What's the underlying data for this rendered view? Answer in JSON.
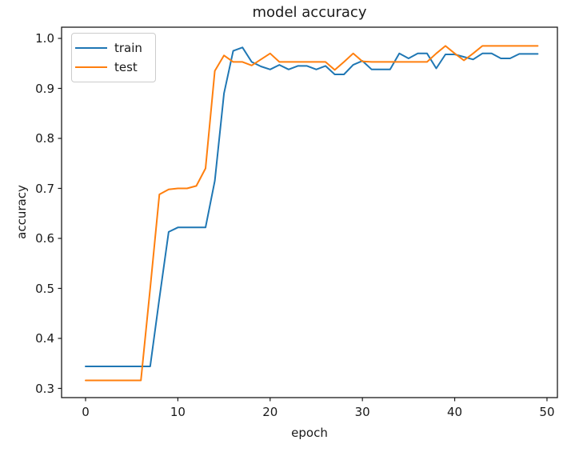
{
  "chart_data": {
    "type": "line",
    "title": "model accuracy",
    "xlabel": "epoch",
    "ylabel": "accuracy",
    "x": [
      0,
      1,
      2,
      3,
      4,
      5,
      6,
      7,
      8,
      9,
      10,
      11,
      12,
      13,
      14,
      15,
      16,
      17,
      18,
      19,
      20,
      21,
      22,
      23,
      24,
      25,
      26,
      27,
      28,
      29,
      30,
      31,
      32,
      33,
      34,
      35,
      36,
      37,
      38,
      39,
      40,
      41,
      42,
      43,
      44,
      45,
      46,
      47,
      48,
      49
    ],
    "series": [
      {
        "name": "train",
        "color": "#1f77b4",
        "values": [
          0.344,
          0.344,
          0.344,
          0.344,
          0.344,
          0.344,
          0.344,
          0.344,
          0.48,
          0.613,
          0.622,
          0.622,
          0.622,
          0.622,
          0.715,
          0.89,
          0.975,
          0.982,
          0.953,
          0.944,
          0.938,
          0.947,
          0.938,
          0.945,
          0.945,
          0.938,
          0.945,
          0.928,
          0.928,
          0.947,
          0.955,
          0.938,
          0.938,
          0.938,
          0.97,
          0.96,
          0.97,
          0.97,
          0.94,
          0.968,
          0.968,
          0.963,
          0.958,
          0.97,
          0.97,
          0.96,
          0.96,
          0.969,
          0.969,
          0.969
        ]
      },
      {
        "name": "test",
        "color": "#ff7f0e",
        "values": [
          0.316,
          0.316,
          0.316,
          0.316,
          0.316,
          0.316,
          0.316,
          0.5,
          0.688,
          0.698,
          0.7,
          0.7,
          0.705,
          0.74,
          0.935,
          0.966,
          0.953,
          0.953,
          0.946,
          0.958,
          0.97,
          0.953,
          0.953,
          0.953,
          0.953,
          0.953,
          0.953,
          0.937,
          0.953,
          0.97,
          0.954,
          0.953,
          0.953,
          0.953,
          0.953,
          0.953,
          0.953,
          0.953,
          0.97,
          0.985,
          0.97,
          0.956,
          0.97,
          0.985,
          0.985,
          0.985,
          0.985,
          0.985,
          0.985,
          0.985
        ]
      }
    ],
    "xticks": [
      0,
      10,
      20,
      30,
      40,
      50
    ],
    "xtick_labels": [
      "0",
      "10",
      "20",
      "30",
      "40",
      "50"
    ],
    "yticks": [
      0.3,
      0.4,
      0.5,
      0.6,
      0.7,
      0.8,
      0.9,
      1.0
    ],
    "ytick_labels": [
      "0.3",
      "0.4",
      "0.5",
      "0.6",
      "0.7",
      "0.8",
      "0.9",
      "1.0"
    ],
    "xlim": [
      -2.6,
      51.13
    ],
    "ylim": [
      0.2816,
      1.0224
    ],
    "legend_position": "upper left",
    "grid": false,
    "axis_color": "#1a1a1a"
  }
}
